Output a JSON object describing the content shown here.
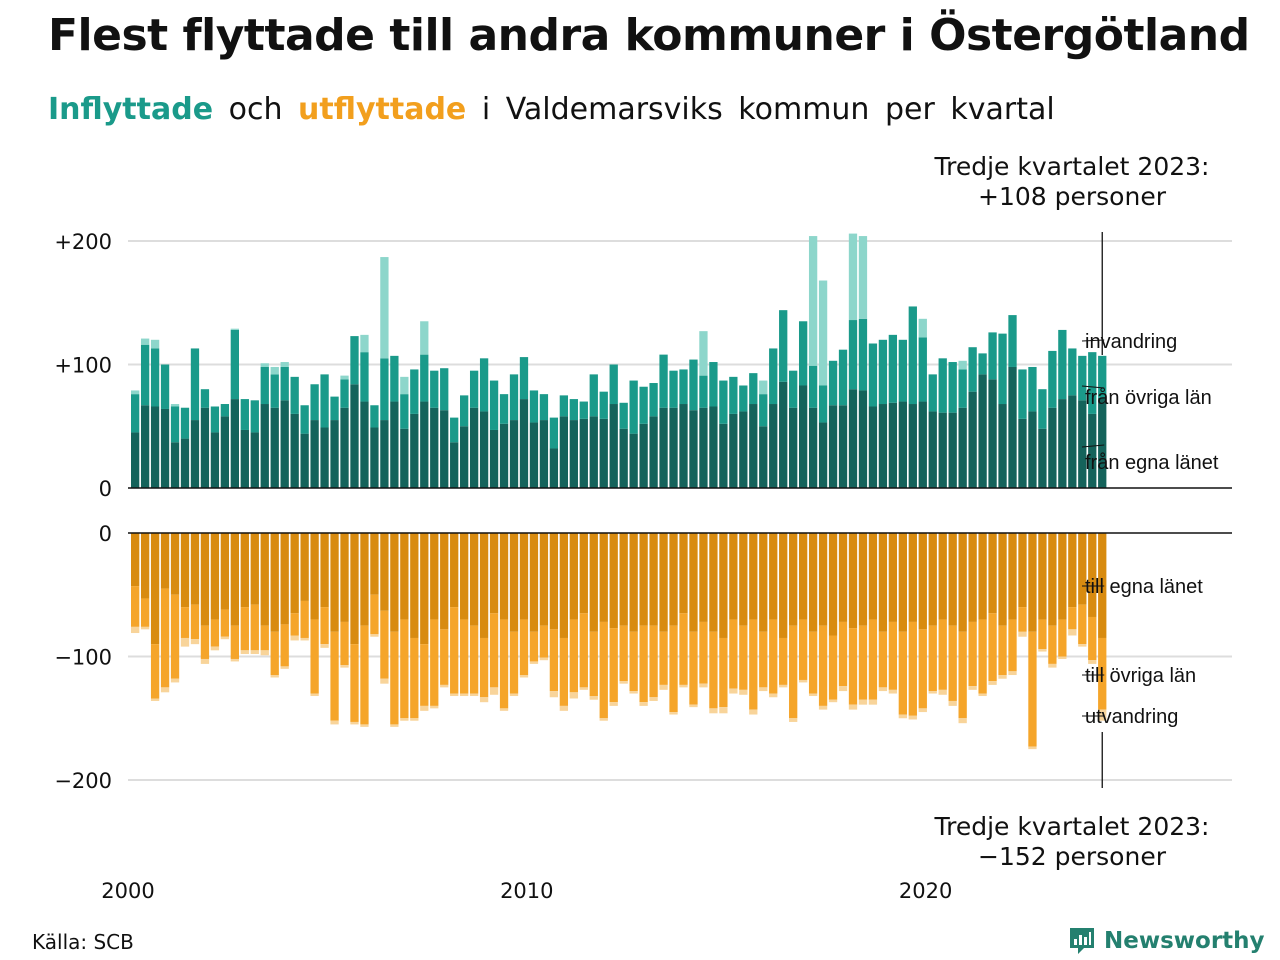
{
  "title": "Flest flyttade till andra kommuner i Östergötland",
  "subtitle": {
    "in_word": "Inflyttade",
    "and_word": "och",
    "out_word": "utflyttade",
    "rest": "i Valdemarsviks kommun per kvartal"
  },
  "colors": {
    "in_local": "#14635b",
    "in_other": "#1a9a8a",
    "in_immig": "#8dd6cb",
    "out_local": "#d88b10",
    "out_other": "#f5a52a",
    "out_emig": "#f8d49a",
    "grid": "#dddddd",
    "brand": "#24806f"
  },
  "annotations": {
    "top_line1": "Tredje kvartalet 2023:",
    "top_line2": "+108 personer",
    "bottom_line1": "Tredje kvartalet 2023:",
    "bottom_line2": "−152 personer"
  },
  "source": "Källa: SCB",
  "brand": {
    "name": "Newsworthy",
    "icon": "chart-logo-icon"
  },
  "chart_data": {
    "type": "bar",
    "stacked": true,
    "x_start": "2000 Q1",
    "x_end": "2023 Q3",
    "x_ticks": [
      "2000",
      "2010",
      "2020"
    ],
    "inflow": {
      "ylim": [
        0,
        200
      ],
      "y_ticks": [
        "+200",
        "+100",
        "0"
      ],
      "series_labels": [
        "invandring",
        "från övriga län",
        "från egna länet"
      ],
      "local": [
        45,
        67,
        66,
        64,
        37,
        40,
        55,
        65,
        45,
        58,
        72,
        47,
        45,
        68,
        65,
        71,
        60,
        44,
        55,
        49,
        55,
        65,
        84,
        70,
        49,
        55,
        70,
        48,
        60,
        70,
        65,
        63,
        37,
        50,
        65,
        62,
        47,
        52,
        55,
        72,
        53,
        55,
        32,
        58,
        55,
        56,
        58,
        56,
        68,
        48,
        44,
        52,
        58,
        65,
        65,
        68,
        63,
        65,
        66,
        52,
        60,
        62,
        68,
        50,
        68,
        86,
        65,
        83,
        65,
        53,
        67,
        67,
        80,
        79,
        66,
        68,
        69,
        70,
        68,
        70,
        62,
        61,
        61,
        65,
        78,
        92,
        88,
        68,
        98,
        56,
        62,
        48,
        65,
        72,
        75,
        71,
        60,
        73
      ],
      "other": [
        31,
        49,
        47,
        36,
        29,
        25,
        58,
        15,
        21,
        10,
        56,
        25,
        26,
        30,
        27,
        27,
        30,
        23,
        29,
        43,
        19,
        23,
        39,
        40,
        18,
        50,
        37,
        28,
        36,
        38,
        30,
        34,
        20,
        25,
        30,
        43,
        40,
        24,
        37,
        34,
        26,
        21,
        25,
        17,
        17,
        14,
        34,
        22,
        32,
        21,
        43,
        30,
        27,
        43,
        30,
        28,
        41,
        26,
        36,
        35,
        30,
        21,
        25,
        26,
        45,
        58,
        30,
        52,
        34,
        30,
        36,
        45,
        56,
        58,
        51,
        52,
        55,
        50,
        79,
        52,
        30,
        44,
        41,
        31,
        36,
        17,
        38,
        57,
        42,
        40,
        36,
        32,
        46,
        56,
        38,
        36,
        50,
        34
      ],
      "immig": [
        3,
        5,
        7,
        0,
        2,
        0,
        0,
        0,
        0,
        0,
        1,
        0,
        0,
        3,
        6,
        4,
        0,
        0,
        0,
        0,
        0,
        3,
        0,
        14,
        0,
        82,
        0,
        14,
        0,
        27,
        0,
        0,
        0,
        0,
        0,
        0,
        0,
        0,
        0,
        0,
        0,
        0,
        0,
        0,
        0,
        0,
        0,
        0,
        0,
        0,
        0,
        0,
        0,
        0,
        0,
        0,
        0,
        36,
        0,
        0,
        0,
        0,
        0,
        11,
        0,
        0,
        0,
        0,
        105,
        85,
        0,
        0,
        70,
        67,
        0,
        0,
        0,
        0,
        0,
        15,
        0,
        0,
        0,
        7,
        0,
        0,
        0,
        0,
        0,
        0,
        0,
        0,
        0,
        0,
        0,
        0,
        0,
        0
      ]
    },
    "outflow": {
      "ylim": [
        -200,
        0
      ],
      "y_ticks": [
        "0",
        "−100",
        "−200"
      ],
      "series_labels": [
        "till egna länet",
        "till övriga län",
        "utvandring"
      ],
      "local": [
        -43,
        -53,
        -90,
        -45,
        -50,
        -60,
        -58,
        -75,
        -70,
        -62,
        -75,
        -60,
        -58,
        -75,
        -80,
        -74,
        -65,
        -55,
        -70,
        -60,
        -80,
        -72,
        -90,
        -75,
        -50,
        -63,
        -80,
        -70,
        -85,
        -90,
        -70,
        -78,
        -60,
        -70,
        -75,
        -85,
        -65,
        -70,
        -80,
        -70,
        -80,
        -75,
        -78,
        -85,
        -70,
        -65,
        -80,
        -72,
        -77,
        -75,
        -80,
        -75,
        -75,
        -80,
        -75,
        -65,
        -80,
        -72,
        -80,
        -85,
        -70,
        -75,
        -70,
        -80,
        -70,
        -85,
        -75,
        -70,
        -80,
        -75,
        -83,
        -72,
        -77,
        -75,
        -70,
        -80,
        -72,
        -80,
        -72,
        -78,
        -75,
        -70,
        -75,
        -80,
        -72,
        -70,
        -65,
        -75,
        -70,
        -60,
        -80,
        -70,
        -75,
        -70,
        -60,
        -58,
        -68,
        -85
      ],
      "other": [
        -33,
        -23,
        -44,
        -80,
        -68,
        -25,
        -28,
        -27,
        -22,
        -22,
        -27,
        -35,
        -37,
        -20,
        -35,
        -34,
        -18,
        -30,
        -60,
        -30,
        -72,
        -35,
        -63,
        -80,
        -32,
        -55,
        -75,
        -80,
        -65,
        -50,
        -70,
        -45,
        -70,
        -60,
        -55,
        -48,
        -60,
        -72,
        -50,
        -45,
        -24,
        -26,
        -50,
        -55,
        -59,
        -60,
        -52,
        -78,
        -60,
        -45,
        -48,
        -62,
        -58,
        -43,
        -70,
        -58,
        -59,
        -50,
        -62,
        -56,
        -56,
        -52,
        -73,
        -45,
        -60,
        -38,
        -75,
        -49,
        -50,
        -65,
        -52,
        -52,
        -62,
        -60,
        -65,
        -45,
        -55,
        -67,
        -76,
        -64,
        -53,
        -57,
        -61,
        -70,
        -52,
        -60,
        -55,
        -40,
        -42,
        -20,
        -93,
        -24,
        -31,
        -30,
        -18,
        -32,
        -35,
        -58
      ],
      "emig": [
        -5,
        -2,
        -2,
        -4,
        -3,
        -7,
        -4,
        -4,
        -3,
        -2,
        -2,
        -3,
        -3,
        -4,
        -2,
        -2,
        -4,
        -2,
        -2,
        -3,
        -3,
        -2,
        -2,
        -2,
        -2,
        -4,
        -2,
        -2,
        -2,
        -4,
        -2,
        -2,
        -2,
        -2,
        -2,
        -4,
        -6,
        -2,
        -2,
        -2,
        -2,
        -2,
        -5,
        -4,
        -5,
        -2,
        -3,
        -2,
        -3,
        -2,
        -2,
        -3,
        -3,
        -4,
        -2,
        -2,
        -2,
        -3,
        -4,
        -5,
        -4,
        -4,
        -4,
        -3,
        -3,
        -2,
        -3,
        -2,
        -2,
        -3,
        -2,
        -4,
        -4,
        -4,
        -4,
        -3,
        -3,
        -3,
        -3,
        -3,
        -2,
        -4,
        -4,
        -4,
        -3,
        -2,
        -3,
        -3,
        -3,
        -4,
        -2,
        -2,
        -3,
        -2,
        -5,
        -2,
        -3,
        -9
      ]
    }
  }
}
